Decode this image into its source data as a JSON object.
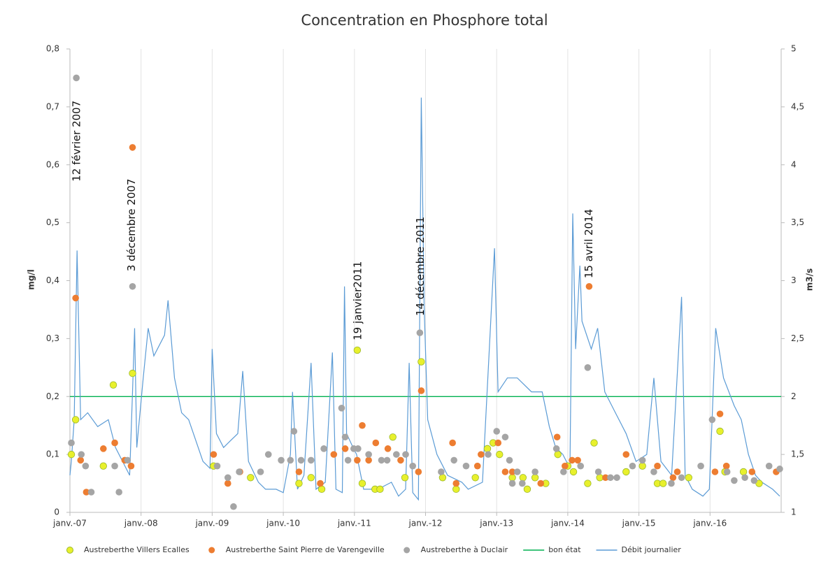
{
  "chart_data": {
    "type": "scatter",
    "title": "Concentration en Phosphore total",
    "y_label": "mg/l",
    "y2_label": "m3/s",
    "xlim": [
      2007,
      2017
    ],
    "xticks": [
      {
        "value": 2007,
        "label": "janv.-07"
      },
      {
        "value": 2008,
        "label": "janv.-08"
      },
      {
        "value": 2009,
        "label": "janv.-09"
      },
      {
        "value": 2010,
        "label": "janv.-10"
      },
      {
        "value": 2011,
        "label": "janv.-11"
      },
      {
        "value": 2012,
        "label": "janv.-12"
      },
      {
        "value": 2013,
        "label": "janv.-13"
      },
      {
        "value": 2014,
        "label": "janv.-14"
      },
      {
        "value": 2015,
        "label": "janv.-15"
      },
      {
        "value": 2016,
        "label": "janv.-16"
      }
    ],
    "ylim": [
      0,
      0.8
    ],
    "yticks": [
      0,
      {
        "value": 0.1,
        "label": "0,1"
      },
      {
        "value": 0.2,
        "label": "0,2"
      },
      {
        "value": 0.3,
        "label": "0,3"
      },
      {
        "value": 0.4,
        "label": "0,4"
      },
      {
        "value": 0.5,
        "label": "0,5"
      },
      {
        "value": 0.6,
        "label": "0,6"
      },
      {
        "value": 0.7,
        "label": "0,7"
      },
      {
        "value": 0.8,
        "label": "0,8"
      }
    ],
    "y2lim": [
      1,
      5
    ],
    "y2ticks": [
      1,
      {
        "value": 1.5,
        "label": "1,5"
      },
      2,
      {
        "value": 2.5,
        "label": "2,5"
      },
      3,
      {
        "value": 3.5,
        "label": "3,5"
      },
      4,
      {
        "value": 4.5,
        "label": "4,5"
      },
      5
    ],
    "grid": "x",
    "legend": "bottom",
    "series": [
      {
        "name": "Austreberthe Villers Ecalles",
        "kind": "scatter",
        "color": "#e8f02c",
        "stroke": "#9ab82a",
        "x": [
          2007.02,
          2007.08,
          2007.47,
          2007.61,
          2007.88,
          2009.02,
          2009.54,
          2010.22,
          2010.39,
          2010.54,
          2011.04,
          2011.11,
          2011.29,
          2011.36,
          2011.54,
          2011.71,
          2011.94,
          2012.24,
          2012.43,
          2012.7,
          2012.87,
          2012.95,
          2013.04,
          2013.22,
          2013.37,
          2013.43,
          2013.54,
          2013.69,
          2013.86,
          2014.0,
          2014.08,
          2014.28,
          2014.37,
          2014.45,
          2014.82,
          2015.05,
          2015.26,
          2015.34,
          2015.7,
          2016.14,
          2016.21,
          2016.47,
          2016.69
        ],
        "values": [
          0.1,
          0.16,
          0.08,
          0.22,
          0.24,
          0.08,
          0.06,
          0.05,
          0.06,
          0.04,
          0.28,
          0.05,
          0.04,
          0.04,
          0.13,
          0.06,
          0.26,
          0.06,
          0.04,
          0.06,
          0.11,
          0.12,
          0.1,
          0.06,
          0.06,
          0.04,
          0.06,
          0.05,
          0.1,
          0.08,
          0.07,
          0.05,
          0.12,
          0.06,
          0.07,
          0.08,
          0.05,
          0.05,
          0.06,
          0.14,
          0.07,
          0.07,
          0.05
        ]
      },
      {
        "name": "Austreberthe Saint Pierre de Varengeville",
        "kind": "scatter",
        "color": "#ed7d31",
        "x": [
          2007.08,
          2007.15,
          2007.23,
          2007.47,
          2007.63,
          2007.77,
          2007.86,
          2007.88,
          2009.02,
          2009.22,
          2009.39,
          2010.22,
          2010.52,
          2010.71,
          2010.87,
          2011.04,
          2011.11,
          2011.2,
          2011.3,
          2011.47,
          2011.65,
          2011.9,
          2011.94,
          2012.38,
          2012.43,
          2012.73,
          2012.78,
          2013.02,
          2013.12,
          2013.22,
          2013.62,
          2013.85,
          2013.96,
          2014.06,
          2014.14,
          2014.3,
          2014.53,
          2014.82,
          2015.26,
          2015.48,
          2015.54,
          2016.07,
          2016.14,
          2016.23,
          2016.59,
          2016.93
        ],
        "values": [
          0.37,
          0.09,
          0.035,
          0.11,
          0.12,
          0.09,
          0.08,
          0.63,
          0.1,
          0.05,
          0.07,
          0.07,
          0.05,
          0.1,
          0.11,
          0.09,
          0.15,
          0.09,
          0.12,
          0.11,
          0.09,
          0.07,
          0.21,
          0.12,
          0.05,
          0.08,
          0.1,
          0.12,
          0.07,
          0.07,
          0.05,
          0.13,
          0.08,
          0.09,
          0.09,
          0.39,
          0.06,
          0.1,
          0.08,
          0.06,
          0.07,
          0.07,
          0.17,
          0.08,
          0.07,
          0.07
        ]
      },
      {
        "name": "Austreberthe à Duclair",
        "kind": "scatter",
        "color": "#a5a5a5",
        "x": [
          2007.02,
          2007.09,
          2007.16,
          2007.22,
          2007.3,
          2007.69,
          2007.63,
          2007.81,
          2007.88,
          2009.07,
          2009.22,
          2009.3,
          2009.38,
          2009.68,
          2009.79,
          2009.97,
          2010.1,
          2010.15,
          2010.25,
          2010.39,
          2010.57,
          2010.82,
          2010.87,
          2010.91,
          2010.99,
          2011.05,
          2011.2,
          2011.38,
          2011.46,
          2011.59,
          2011.72,
          2011.82,
          2011.92,
          2012.22,
          2012.4,
          2012.57,
          2012.88,
          2013.0,
          2013.12,
          2013.18,
          2013.22,
          2013.29,
          2013.36,
          2013.54,
          2013.84,
          2013.94,
          2014.18,
          2014.28,
          2014.43,
          2014.6,
          2014.69,
          2014.91,
          2015.05,
          2015.21,
          2015.456,
          2015.6,
          2015.87,
          2016.03,
          2016.24,
          2016.34,
          2016.49,
          2016.62,
          2016.83,
          2016.98
        ],
        "values": [
          0.12,
          0.75,
          0.1,
          0.08,
          0.035,
          0.035,
          0.08,
          0.09,
          0.39,
          0.08,
          0.06,
          0.01,
          0.07,
          0.07,
          0.1,
          0.09,
          0.09,
          0.14,
          0.09,
          0.09,
          0.11,
          0.18,
          0.13,
          0.09,
          0.11,
          0.11,
          0.1,
          0.09,
          0.09,
          0.1,
          0.1,
          0.08,
          0.31,
          0.07,
          0.09,
          0.08,
          0.1,
          0.14,
          0.13,
          0.09,
          0.05,
          0.07,
          0.05,
          0.07,
          0.11,
          0.07,
          0.08,
          0.25,
          0.07,
          0.06,
          0.06,
          0.08,
          0.09,
          0.07,
          0.05,
          0.06,
          0.08,
          0.16,
          0.07,
          0.055,
          0.06,
          0.055,
          0.08,
          0.075
        ]
      },
      {
        "name": "bon état",
        "kind": "line",
        "color": "#00b050",
        "x": [
          2007,
          2017
        ],
        "values": [
          0.2,
          0.2
        ]
      },
      {
        "name": "Débit journalier",
        "kind": "line",
        "axis": "y2",
        "color": "#5b9bd5",
        "x": [
          2007.0,
          2007.02,
          2007.06,
          2007.1,
          2007.15,
          2007.25,
          2007.39,
          2007.54,
          2007.64,
          2007.74,
          2007.84,
          2007.88,
          2007.91,
          2007.94,
          2008.03,
          2008.1,
          2008.18,
          2008.33,
          2008.38,
          2008.47,
          2008.57,
          2008.67,
          2008.77,
          2008.87,
          2008.97,
          2009.0,
          2009.06,
          2009.16,
          2009.26,
          2009.36,
          2009.43,
          2009.51,
          2009.65,
          2009.75,
          2009.9,
          2010.0,
          2010.1,
          2010.13,
          2010.2,
          2010.29,
          2010.39,
          2010.46,
          2010.59,
          2010.69,
          2010.74,
          2010.83,
          2010.86,
          2010.89,
          2010.98,
          2011.03,
          2011.13,
          2011.33,
          2011.52,
          2011.62,
          2011.72,
          2011.77,
          2011.82,
          2011.9,
          2011.94,
          2011.98,
          2012.03,
          2012.16,
          2012.31,
          2012.51,
          2012.6,
          2012.8,
          2012.97,
          2013.02,
          2013.15,
          2013.29,
          2013.49,
          2013.64,
          2013.74,
          2013.83,
          2013.93,
          2014.03,
          2014.07,
          2014.11,
          2014.17,
          2014.2,
          2014.33,
          2014.42,
          2014.52,
          2014.67,
          2014.82,
          2014.96,
          2015.11,
          2015.21,
          2015.31,
          2015.46,
          2015.6,
          2015.65,
          2015.75,
          2015.9,
          2015.99,
          2016.08,
          2016.19,
          2016.34,
          2016.44,
          2016.54,
          2016.64,
          2016.73,
          2016.88,
          2016.98
        ],
        "values": [
          1.32,
          1.44,
          1.8,
          3.26,
          1.8,
          1.86,
          1.74,
          1.8,
          1.56,
          1.44,
          1.32,
          2.04,
          2.59,
          1.56,
          2.16,
          2.59,
          2.35,
          2.53,
          2.83,
          2.16,
          1.86,
          1.8,
          1.62,
          1.44,
          1.38,
          2.41,
          1.68,
          1.56,
          1.62,
          1.68,
          2.22,
          1.44,
          1.26,
          1.2,
          1.2,
          1.17,
          1.5,
          2.04,
          1.2,
          1.32,
          2.29,
          1.2,
          1.26,
          2.38,
          1.2,
          1.17,
          2.95,
          1.68,
          1.56,
          1.5,
          1.2,
          1.2,
          1.26,
          1.14,
          1.2,
          2.29,
          1.17,
          1.11,
          4.58,
          2.77,
          1.8,
          1.5,
          1.32,
          1.26,
          1.2,
          1.26,
          3.28,
          2.04,
          2.16,
          2.16,
          2.04,
          2.04,
          1.74,
          1.56,
          1.5,
          1.38,
          3.58,
          2.41,
          3.13,
          2.65,
          2.41,
          2.59,
          2.04,
          1.86,
          1.68,
          1.44,
          1.5,
          2.16,
          1.44,
          1.32,
          2.86,
          1.32,
          1.2,
          1.14,
          1.2,
          2.59,
          2.16,
          1.92,
          1.8,
          1.5,
          1.32,
          1.26,
          1.2,
          1.14
        ]
      }
    ],
    "annotations": [
      {
        "text": "12 février 2007",
        "x": 2007.1,
        "y": 0.571
      },
      {
        "text": "3 décembre 2007",
        "x": 2007.87,
        "y": 0.416
      },
      {
        "text": "19 janvier2011",
        "x": 2011.05,
        "y": 0.297
      },
      {
        "text": "14 décembre 2011",
        "x": 2011.93,
        "y": 0.339
      },
      {
        "text": "15 avril 2014",
        "x": 2014.3,
        "y": 0.404
      }
    ]
  }
}
